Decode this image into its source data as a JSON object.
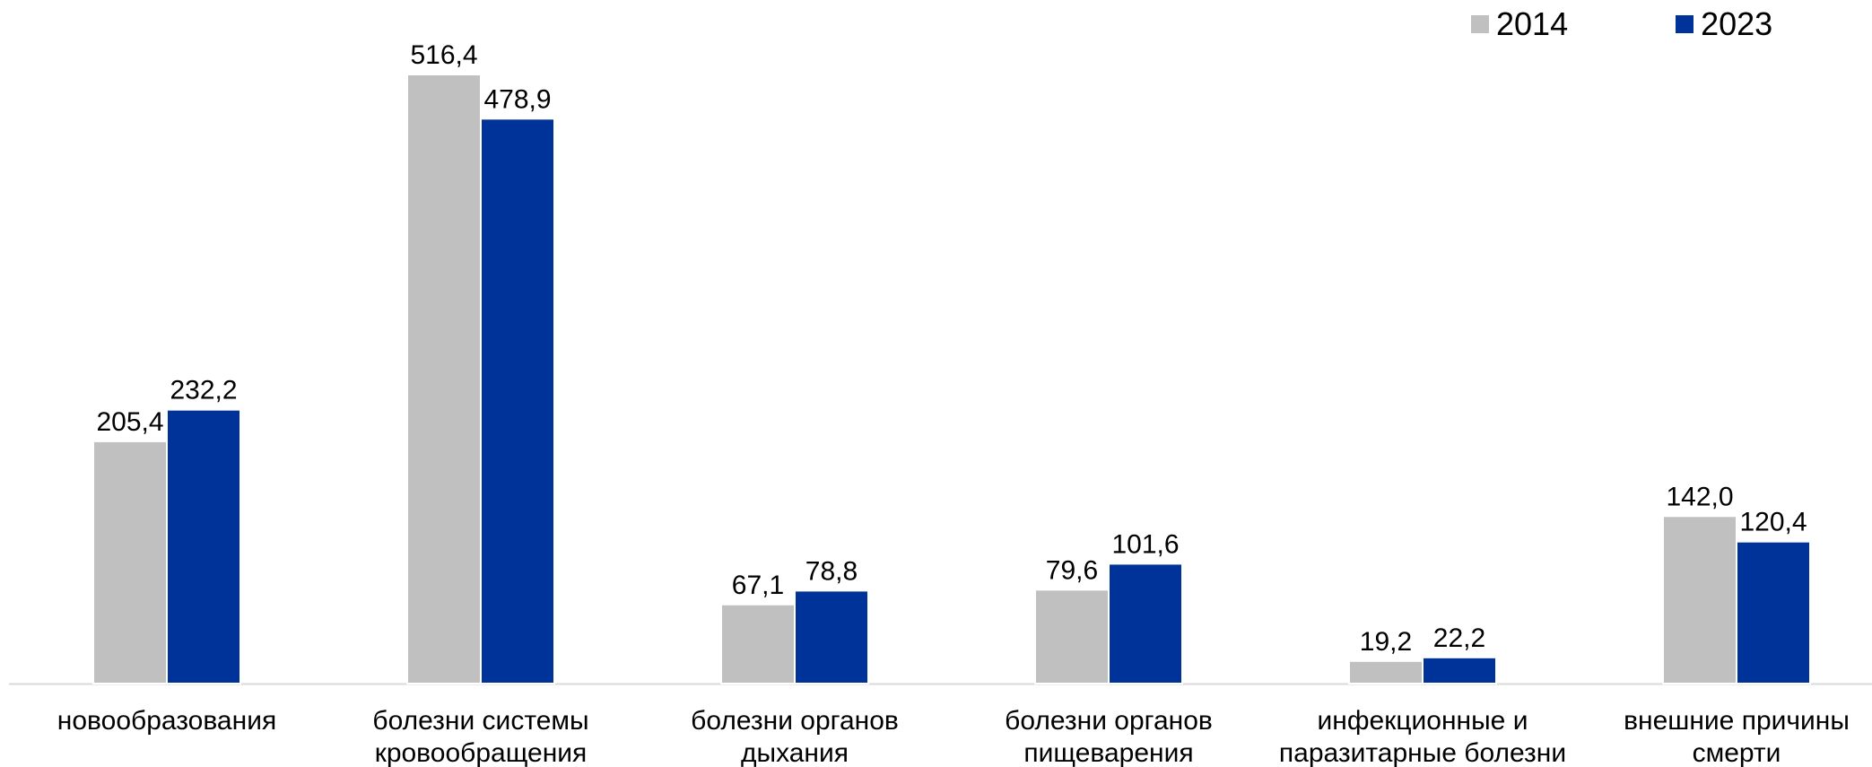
{
  "chart_data": {
    "type": "bar",
    "categories": [
      [
        "новообразования"
      ],
      [
        "болезни системы",
        "кровообращения"
      ],
      [
        "болезни органов",
        "дыхания"
      ],
      [
        "болезни органов",
        "пищеварения"
      ],
      [
        "инфекционные и",
        "паразитарные болезни"
      ],
      [
        "внешние причины",
        "смерти"
      ]
    ],
    "series": [
      {
        "name": "2014",
        "color": "#c0c0c0",
        "values": [
          205.4,
          516.4,
          67.1,
          79.6,
          19.2,
          142.0
        ],
        "labels": [
          "205,4",
          "516,4",
          "67,1",
          "79,6",
          "19,2",
          "142,0"
        ]
      },
      {
        "name": "2023",
        "color": "#003399",
        "values": [
          232.2,
          478.9,
          78.8,
          101.6,
          22.2,
          120.4
        ],
        "labels": [
          "232,2",
          "478,9",
          "78,8",
          "101,6",
          "22,2",
          "120,4"
        ]
      }
    ],
    "ylim": [
      0,
      516.4
    ],
    "grid": false,
    "legend_position": "top-right",
    "axis_color": "#d9d9d9"
  }
}
